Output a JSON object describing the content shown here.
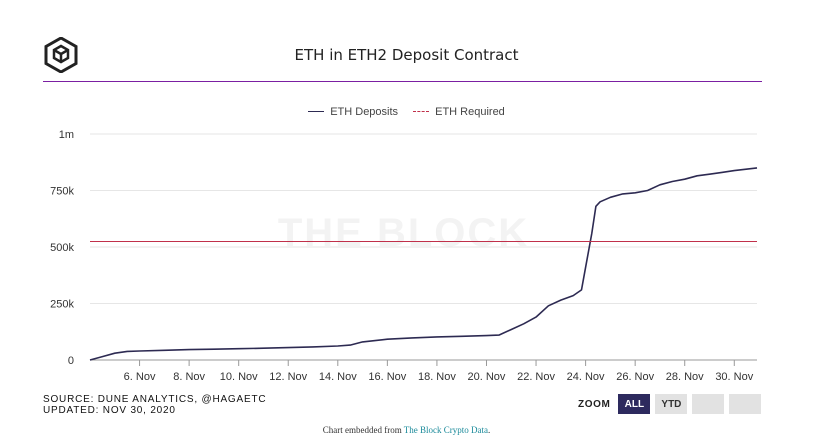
{
  "header": {
    "title": "ETH in ETH2 Deposit Contract",
    "logo_icon": "the-block-cube-icon"
  },
  "footer": {
    "source_line": "SOURCE: DUNE ANALYTICS, @HAGAETC",
    "updated_line": "UPDATED: NOV 30, 2020",
    "zoom_label": "ZOOM",
    "zoom_buttons": [
      "ALL",
      "YTD",
      "",
      ""
    ],
    "embed_prefix": "Chart embedded from ",
    "embed_link": "The Block Crypto Data",
    "embed_suffix": "."
  },
  "colors": {
    "accent_rule": "#7b1fa2",
    "deposits_line": "#2d2a52",
    "required_line": "#c0304a",
    "zoom_active": "#2d2a5e"
  },
  "chart_data": {
    "type": "line",
    "title": "ETH in ETH2 Deposit Contract",
    "watermark": "THE BLOCK",
    "xlabel": "",
    "ylabel": "",
    "ylim": [
      0,
      1000000
    ],
    "y_ticks": [
      0,
      250000,
      500000,
      750000,
      1000000
    ],
    "y_tick_labels": [
      "0",
      "250k",
      "500k",
      "750k",
      "1m"
    ],
    "x_range": [
      "2020-11-04",
      "2020-11-30T22:00"
    ],
    "x_tick_labels": [
      "6. Nov",
      "8. Nov",
      "10. Nov",
      "12. Nov",
      "14. Nov",
      "16. Nov",
      "18. Nov",
      "20. Nov",
      "22. Nov",
      "24. Nov",
      "26. Nov",
      "28. Nov",
      "30. Nov"
    ],
    "x_tick_dates": [
      "2020-11-06",
      "2020-11-08",
      "2020-11-10",
      "2020-11-12",
      "2020-11-14",
      "2020-11-16",
      "2020-11-18",
      "2020-11-20",
      "2020-11-22",
      "2020-11-24",
      "2020-11-26",
      "2020-11-28",
      "2020-11-30"
    ],
    "legend": {
      "placement": "top-center",
      "entries": [
        "ETH Deposits",
        "ETH Required"
      ]
    },
    "grid": {
      "y": true,
      "x": false
    },
    "series": [
      {
        "name": "ETH Deposits",
        "x": [
          "2020-11-04",
          "2020-11-04T12:00",
          "2020-11-05",
          "2020-11-05T12:00",
          "2020-11-06",
          "2020-11-07",
          "2020-11-08",
          "2020-11-09",
          "2020-11-10",
          "2020-11-11",
          "2020-11-12",
          "2020-11-13",
          "2020-11-14",
          "2020-11-14T12:00",
          "2020-11-15",
          "2020-11-16",
          "2020-11-17",
          "2020-11-18",
          "2020-11-19",
          "2020-11-20",
          "2020-11-20T12:00",
          "2020-11-21",
          "2020-11-21T12:00",
          "2020-11-22",
          "2020-11-22T12:00",
          "2020-11-23",
          "2020-11-23T12:00",
          "2020-11-23T20:00",
          "2020-11-24",
          "2020-11-24T06:00",
          "2020-11-24T10:00",
          "2020-11-24T14:00",
          "2020-11-25",
          "2020-11-25T12:00",
          "2020-11-26",
          "2020-11-26T12:00",
          "2020-11-27",
          "2020-11-27T12:00",
          "2020-11-28",
          "2020-11-28T12:00",
          "2020-11-29",
          "2020-11-29T12:00",
          "2020-11-30",
          "2020-11-30T22:00"
        ],
        "values": [
          0,
          15000,
          30000,
          38000,
          40000,
          43000,
          46000,
          48000,
          50000,
          52000,
          55000,
          58000,
          62000,
          66000,
          80000,
          92000,
          98000,
          102000,
          105000,
          108000,
          110000,
          135000,
          160000,
          190000,
          240000,
          265000,
          285000,
          310000,
          410000,
          560000,
          680000,
          700000,
          720000,
          735000,
          740000,
          750000,
          775000,
          790000,
          800000,
          815000,
          822000,
          830000,
          838000,
          850000
        ]
      },
      {
        "name": "ETH Required",
        "x": [
          "2020-11-04",
          "2020-11-30T22:00"
        ],
        "values": [
          524288,
          524288
        ]
      }
    ]
  }
}
